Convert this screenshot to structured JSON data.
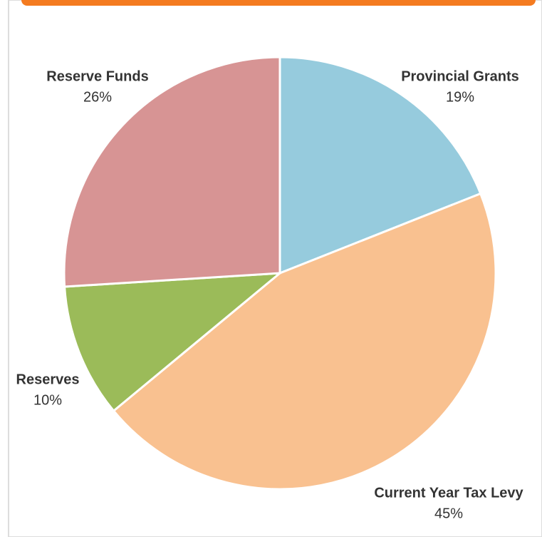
{
  "chart_data": {
    "type": "pie",
    "categories": [
      "Provincial Grants",
      "Current Year Tax Levy",
      "Reserves",
      "Reserve Funds"
    ],
    "values": [
      19,
      45,
      10,
      26
    ],
    "value_labels": [
      "19%",
      "45%",
      "10%",
      "26%"
    ],
    "colors": [
      "#96cbdd",
      "#f9c190",
      "#9bbb59",
      "#d79494"
    ]
  }
}
